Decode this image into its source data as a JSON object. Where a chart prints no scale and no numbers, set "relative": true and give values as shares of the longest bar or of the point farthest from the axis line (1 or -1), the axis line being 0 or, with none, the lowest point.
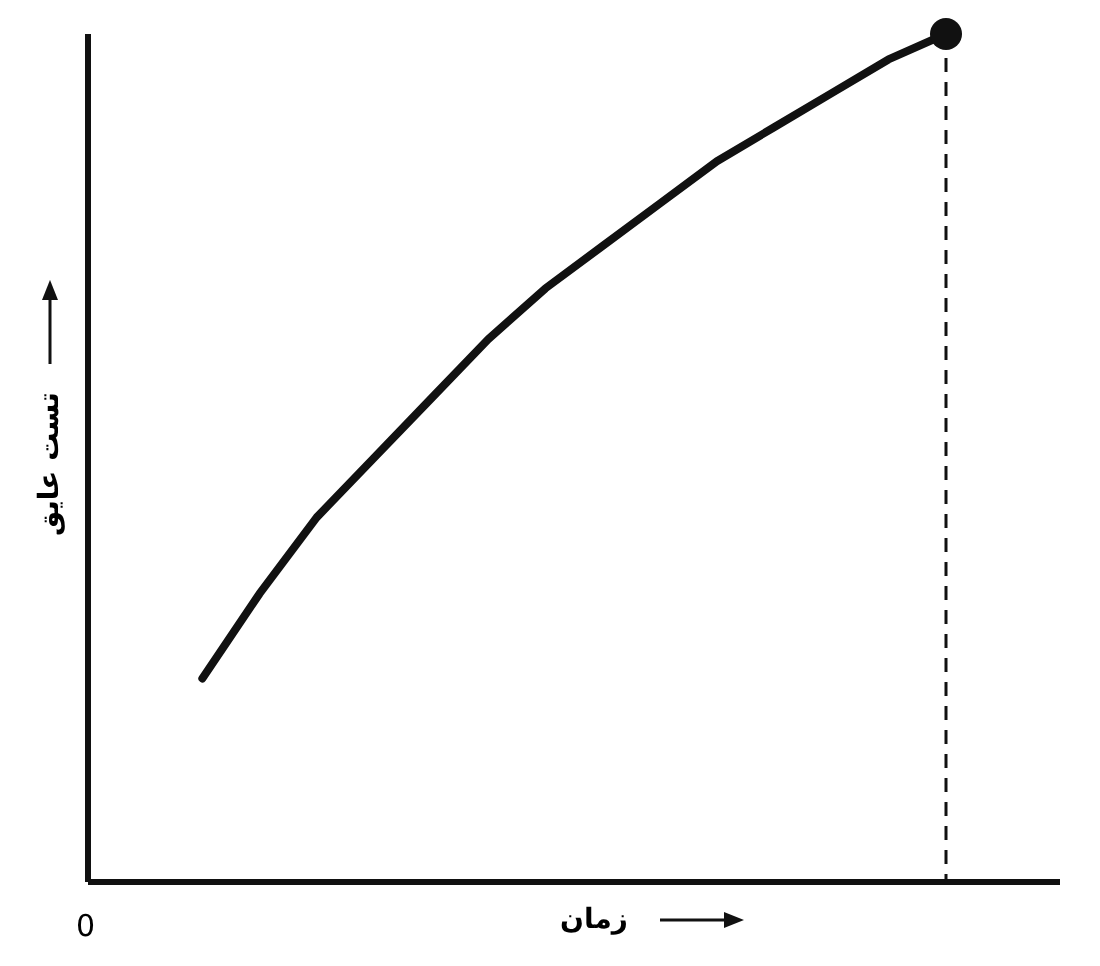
{
  "chart_data": {
    "type": "line",
    "relative": true,
    "xlabel": "زمان",
    "ylabel": "تست عایق",
    "annotations": [
      "0"
    ],
    "categories": [
      null,
      null,
      null,
      null,
      null,
      null,
      null,
      null,
      null,
      null,
      null,
      null,
      null,
      null,
      null,
      null,
      null,
      null
    ],
    "series": [
      {
        "color": "#111111",
        "values": [
          null,
          null,
          0.24,
          0.34,
          0.43,
          0.5,
          0.57,
          0.64,
          0.7,
          0.75,
          0.8,
          0.85,
          0.89,
          0.93,
          0.97,
          1,
          null,
          null
        ]
      }
    ],
    "marker": "none",
    "line_style": "solid",
    "grid": false,
    "legend": false
  }
}
